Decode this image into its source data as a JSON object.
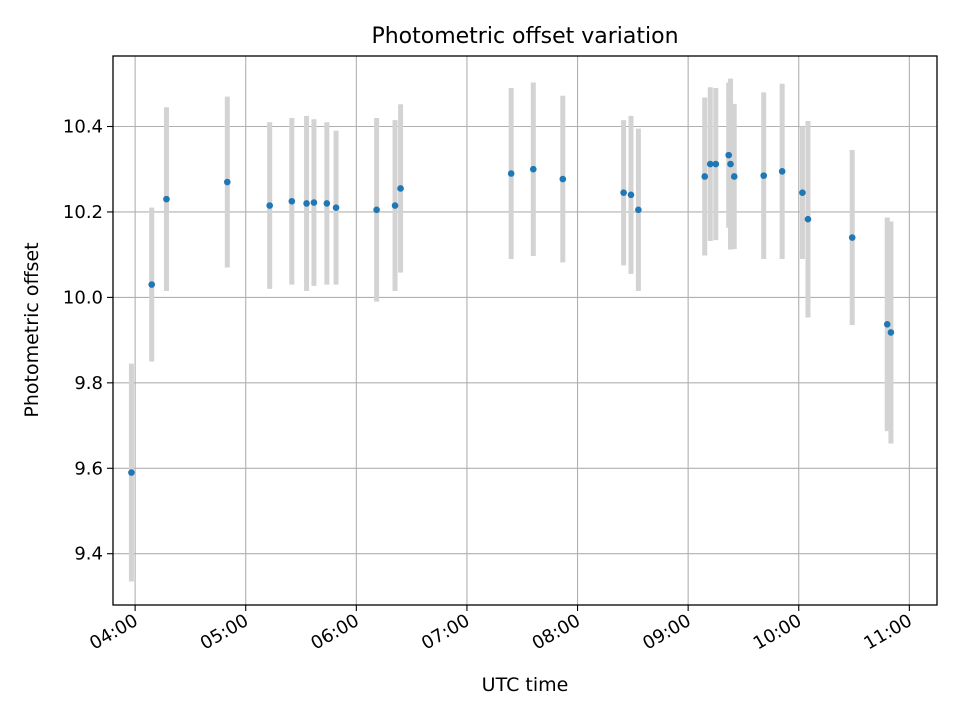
{
  "chart_data": {
    "type": "scatter",
    "title": "Photometric offset variation",
    "xlabel": "UTC time",
    "ylabel": "Photometric offset",
    "x_unit": "UTC time (HH:MM)",
    "xlim": [
      "03:48",
      "11:15"
    ],
    "ylim": [
      9.28,
      10.565
    ],
    "x_ticks": [
      "04:00",
      "05:00",
      "06:00",
      "07:00",
      "08:00",
      "09:00",
      "10:00",
      "11:00"
    ],
    "y_ticks": [
      9.4,
      9.6,
      9.8,
      10.0,
      10.2,
      10.4
    ],
    "y_tick_labels": [
      "9.4",
      "9.6",
      "9.8",
      "10.0",
      "10.2",
      "10.4"
    ],
    "grid": true,
    "colors": {
      "marker": "#1f77b4",
      "errorbar": "#d3d3d3",
      "grid": "#b0b0b0",
      "axes": "#000000"
    },
    "series": [
      {
        "x": [
          "03:58",
          "04:09",
          "04:17",
          "04:50",
          "05:13",
          "05:25",
          "05:33",
          "05:37",
          "05:44",
          "05:49",
          "06:11",
          "06:21",
          "06:24",
          "07:24",
          "07:36",
          "07:52",
          "08:25",
          "08:29",
          "08:33",
          "09:09",
          "09:12",
          "09:15",
          "09:22",
          "09:23",
          "09:25",
          "09:41",
          "09:51",
          "10:02",
          "10:05",
          "10:29",
          "10:48",
          "10:50"
        ],
        "y": [
          9.59,
          10.03,
          10.23,
          10.27,
          10.215,
          10.225,
          10.22,
          10.222,
          10.22,
          10.21,
          10.205,
          10.215,
          10.255,
          10.29,
          10.3,
          10.277,
          10.245,
          10.24,
          10.205,
          10.283,
          10.312,
          10.312,
          10.333,
          10.312,
          10.283,
          10.285,
          10.295,
          10.245,
          10.183,
          10.14,
          9.937,
          9.918
        ],
        "err": [
          0.255,
          0.18,
          0.215,
          0.2,
          0.195,
          0.195,
          0.205,
          0.195,
          0.19,
          0.18,
          0.215,
          0.2,
          0.197,
          0.2,
          0.203,
          0.195,
          0.17,
          0.185,
          0.19,
          0.185,
          0.18,
          0.178,
          0.17,
          0.2,
          0.17,
          0.195,
          0.205,
          0.155,
          0.23,
          0.205,
          0.25,
          0.26
        ]
      }
    ]
  }
}
